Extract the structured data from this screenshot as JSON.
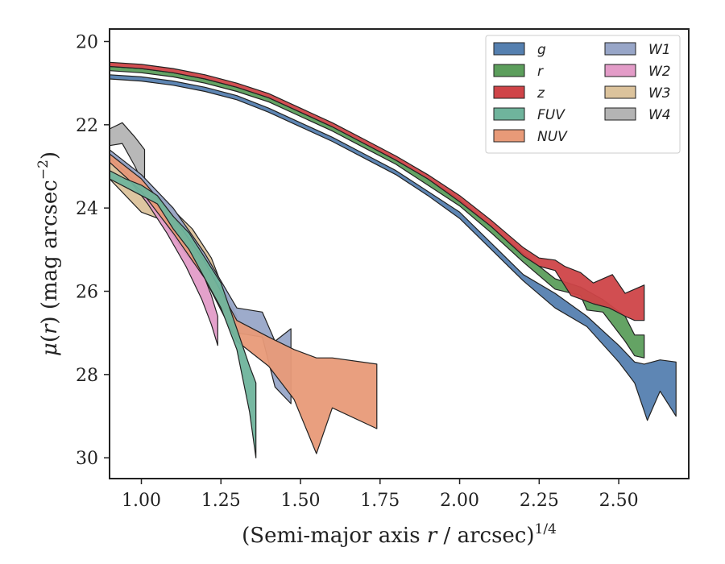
{
  "chart_data": {
    "type": "area",
    "xlabel": "(Semi-major axis r / arcsec)^1/4",
    "xlabel_parts": {
      "pre": "(Semi-major axis ",
      "var": "r",
      "mid": " / arcsec)",
      "sup": "1/4"
    },
    "ylabel": "μ(r) (mag arcsec^−2)",
    "ylabel_parts": {
      "var": "μ",
      "open": "(",
      "r": "r",
      "close": ")",
      "rest": " (mag arcsec",
      "sup": "−2",
      "end": ")"
    },
    "xlim": [
      0.9,
      2.72
    ],
    "ylim": [
      30.5,
      19.7
    ],
    "y_inverted": true,
    "xticks": [
      "1.00",
      "1.25",
      "1.50",
      "1.75",
      "2.00",
      "2.25",
      "2.50"
    ],
    "yticks": [
      "20",
      "22",
      "24",
      "26",
      "28",
      "30"
    ],
    "legend_position": "top-right",
    "legend_columns": 2,
    "series": [
      {
        "name": "W3",
        "color": "#dcc39c",
        "upper": [
          [
            0.9,
            22.9
          ],
          [
            1.0,
            23.5
          ],
          [
            1.07,
            23.8
          ],
          [
            1.12,
            24.2
          ],
          [
            1.16,
            24.5
          ],
          [
            1.22,
            25.2
          ],
          [
            1.26,
            26.0
          ],
          [
            1.3,
            26.6
          ]
        ],
        "lower": [
          [
            0.9,
            23.3
          ],
          [
            1.0,
            24.1
          ],
          [
            1.07,
            24.3
          ],
          [
            1.12,
            24.9
          ],
          [
            1.16,
            25.3
          ],
          [
            1.22,
            25.7
          ],
          [
            1.26,
            26.3
          ],
          [
            1.3,
            26.8
          ]
        ]
      },
      {
        "name": "W4",
        "color": "#b4b4b4",
        "upper": [
          [
            0.9,
            22.1
          ],
          [
            0.94,
            21.95
          ],
          [
            0.98,
            22.3
          ],
          [
            1.01,
            22.6
          ]
        ],
        "lower": [
          [
            0.9,
            22.5
          ],
          [
            0.94,
            22.45
          ],
          [
            0.98,
            23.0
          ],
          [
            1.01,
            23.5
          ]
        ]
      },
      {
        "name": "W2",
        "color": "#e39cc8",
        "upper": [
          [
            0.9,
            22.7
          ],
          [
            0.96,
            23.0
          ],
          [
            1.02,
            23.5
          ],
          [
            1.08,
            24.1
          ],
          [
            1.14,
            24.8
          ],
          [
            1.19,
            25.5
          ],
          [
            1.22,
            26.1
          ],
          [
            1.24,
            26.6
          ]
        ],
        "lower": [
          [
            0.9,
            22.9
          ],
          [
            0.96,
            23.3
          ],
          [
            1.02,
            23.9
          ],
          [
            1.08,
            24.6
          ],
          [
            1.14,
            25.4
          ],
          [
            1.19,
            26.2
          ],
          [
            1.22,
            26.8
          ],
          [
            1.24,
            27.3
          ]
        ]
      },
      {
        "name": "W1",
        "color": "#98a6c8",
        "upper": [
          [
            0.9,
            22.6
          ],
          [
            1.0,
            23.2
          ],
          [
            1.1,
            24.0
          ],
          [
            1.2,
            25.1
          ],
          [
            1.3,
            26.4
          ],
          [
            1.38,
            26.5
          ],
          [
            1.42,
            27.2
          ],
          [
            1.47,
            26.9
          ]
        ],
        "lower": [
          [
            0.9,
            22.8
          ],
          [
            1.0,
            23.5
          ],
          [
            1.1,
            24.4
          ],
          [
            1.2,
            25.6
          ],
          [
            1.3,
            27.0
          ],
          [
            1.38,
            27.1
          ],
          [
            1.42,
            28.3
          ],
          [
            1.47,
            28.7
          ]
        ]
      },
      {
        "name": "NUV",
        "color": "#e89a78",
        "upper": [
          [
            0.9,
            22.7
          ],
          [
            1.0,
            23.3
          ],
          [
            1.1,
            24.2
          ],
          [
            1.2,
            25.3
          ],
          [
            1.3,
            26.7
          ],
          [
            1.4,
            27.1
          ],
          [
            1.48,
            27.4
          ],
          [
            1.55,
            27.6
          ],
          [
            1.6,
            27.6
          ],
          [
            1.74,
            27.75
          ]
        ],
        "lower": [
          [
            0.9,
            22.9
          ],
          [
            1.0,
            23.6
          ],
          [
            1.1,
            24.6
          ],
          [
            1.2,
            25.7
          ],
          [
            1.3,
            27.2
          ],
          [
            1.4,
            27.8
          ],
          [
            1.48,
            28.6
          ],
          [
            1.55,
            29.9
          ],
          [
            1.6,
            28.8
          ],
          [
            1.74,
            29.3
          ]
        ]
      },
      {
        "name": "FUV",
        "color": "#6fb49c",
        "upper": [
          [
            0.9,
            23.1
          ],
          [
            0.95,
            23.3
          ],
          [
            1.0,
            23.45
          ],
          [
            1.05,
            23.7
          ],
          [
            1.1,
            24.2
          ],
          [
            1.15,
            24.6
          ],
          [
            1.2,
            25.2
          ],
          [
            1.25,
            25.8
          ],
          [
            1.3,
            26.9
          ],
          [
            1.34,
            27.8
          ],
          [
            1.36,
            28.2
          ]
        ],
        "lower": [
          [
            0.9,
            23.3
          ],
          [
            0.95,
            23.5
          ],
          [
            1.0,
            23.7
          ],
          [
            1.05,
            23.9
          ],
          [
            1.1,
            24.5
          ],
          [
            1.15,
            25.0
          ],
          [
            1.2,
            25.7
          ],
          [
            1.25,
            26.4
          ],
          [
            1.3,
            27.4
          ],
          [
            1.34,
            28.9
          ],
          [
            1.36,
            30.0
          ]
        ]
      },
      {
        "name": "g",
        "color": "#5580b0",
        "upper": [
          [
            0.9,
            20.8
          ],
          [
            1.0,
            20.85
          ],
          [
            1.1,
            20.95
          ],
          [
            1.2,
            21.1
          ],
          [
            1.3,
            21.3
          ],
          [
            1.4,
            21.6
          ],
          [
            1.5,
            21.95
          ],
          [
            1.6,
            22.3
          ],
          [
            1.7,
            22.7
          ],
          [
            1.8,
            23.1
          ],
          [
            1.9,
            23.6
          ],
          [
            2.0,
            24.1
          ],
          [
            2.1,
            24.85
          ],
          [
            2.2,
            25.6
          ],
          [
            2.3,
            26.05
          ],
          [
            2.4,
            26.6
          ],
          [
            2.5,
            27.3
          ],
          [
            2.55,
            27.7
          ],
          [
            2.58,
            27.75
          ],
          [
            2.63,
            27.65
          ],
          [
            2.68,
            27.7
          ]
        ],
        "lower": [
          [
            0.9,
            20.9
          ],
          [
            1.0,
            20.95
          ],
          [
            1.1,
            21.05
          ],
          [
            1.2,
            21.2
          ],
          [
            1.3,
            21.4
          ],
          [
            1.4,
            21.7
          ],
          [
            1.5,
            22.05
          ],
          [
            1.6,
            22.4
          ],
          [
            1.7,
            22.8
          ],
          [
            1.8,
            23.2
          ],
          [
            1.9,
            23.7
          ],
          [
            2.0,
            24.25
          ],
          [
            2.1,
            25.0
          ],
          [
            2.2,
            25.75
          ],
          [
            2.3,
            26.4
          ],
          [
            2.4,
            26.85
          ],
          [
            2.5,
            27.7
          ],
          [
            2.55,
            28.2
          ],
          [
            2.59,
            29.1
          ],
          [
            2.63,
            28.4
          ],
          [
            2.68,
            29.0
          ]
        ]
      },
      {
        "name": "r",
        "color": "#5c9e5c",
        "upper": [
          [
            0.9,
            20.6
          ],
          [
            1.0,
            20.65
          ],
          [
            1.1,
            20.75
          ],
          [
            1.2,
            20.9
          ],
          [
            1.3,
            21.1
          ],
          [
            1.4,
            21.35
          ],
          [
            1.5,
            21.7
          ],
          [
            1.6,
            22.05
          ],
          [
            1.7,
            22.45
          ],
          [
            1.8,
            22.85
          ],
          [
            1.9,
            23.3
          ],
          [
            2.0,
            23.8
          ],
          [
            2.1,
            24.45
          ],
          [
            2.2,
            25.1
          ],
          [
            2.3,
            25.7
          ],
          [
            2.38,
            25.9
          ],
          [
            2.45,
            26.2
          ],
          [
            2.52,
            26.6
          ],
          [
            2.55,
            27.05
          ],
          [
            2.58,
            27.05
          ]
        ],
        "lower": [
          [
            0.9,
            20.7
          ],
          [
            1.0,
            20.75
          ],
          [
            1.1,
            20.85
          ],
          [
            1.2,
            21.0
          ],
          [
            1.3,
            21.2
          ],
          [
            1.4,
            21.45
          ],
          [
            1.5,
            21.8
          ],
          [
            1.6,
            22.15
          ],
          [
            1.7,
            22.55
          ],
          [
            1.8,
            22.95
          ],
          [
            1.9,
            23.45
          ],
          [
            2.0,
            23.95
          ],
          [
            2.1,
            24.6
          ],
          [
            2.2,
            25.3
          ],
          [
            2.3,
            25.95
          ],
          [
            2.38,
            26.1
          ],
          [
            2.4,
            26.45
          ],
          [
            2.45,
            26.5
          ],
          [
            2.52,
            27.2
          ],
          [
            2.55,
            27.55
          ],
          [
            2.58,
            27.6
          ]
        ]
      },
      {
        "name": "z",
        "color": "#cf4448",
        "upper": [
          [
            0.9,
            20.5
          ],
          [
            1.0,
            20.55
          ],
          [
            1.1,
            20.65
          ],
          [
            1.2,
            20.8
          ],
          [
            1.3,
            21.0
          ],
          [
            1.4,
            21.25
          ],
          [
            1.5,
            21.6
          ],
          [
            1.6,
            21.95
          ],
          [
            1.7,
            22.35
          ],
          [
            1.8,
            22.75
          ],
          [
            1.9,
            23.2
          ],
          [
            2.0,
            23.7
          ],
          [
            2.1,
            24.3
          ],
          [
            2.2,
            24.95
          ],
          [
            2.25,
            25.2
          ],
          [
            2.3,
            25.25
          ],
          [
            2.33,
            25.4
          ],
          [
            2.38,
            25.55
          ],
          [
            2.42,
            25.8
          ],
          [
            2.48,
            25.6
          ],
          [
            2.52,
            26.05
          ],
          [
            2.58,
            25.85
          ]
        ],
        "lower": [
          [
            0.9,
            20.6
          ],
          [
            1.0,
            20.65
          ],
          [
            1.1,
            20.75
          ],
          [
            1.2,
            20.9
          ],
          [
            1.3,
            21.1
          ],
          [
            1.4,
            21.35
          ],
          [
            1.5,
            21.7
          ],
          [
            1.6,
            22.05
          ],
          [
            1.7,
            22.45
          ],
          [
            1.8,
            22.85
          ],
          [
            1.9,
            23.3
          ],
          [
            2.0,
            23.85
          ],
          [
            2.1,
            24.45
          ],
          [
            2.2,
            25.15
          ],
          [
            2.25,
            25.4
          ],
          [
            2.3,
            25.5
          ],
          [
            2.35,
            26.1
          ],
          [
            2.42,
            26.3
          ],
          [
            2.47,
            26.4
          ],
          [
            2.52,
            26.6
          ],
          [
            2.55,
            26.7
          ],
          [
            2.58,
            26.7
          ]
        ]
      }
    ],
    "legend": [
      {
        "name": "g",
        "color": "#5580b0"
      },
      {
        "name": "r",
        "color": "#5c9e5c"
      },
      {
        "name": "z",
        "color": "#cf4448"
      },
      {
        "name": "FUV",
        "color": "#6fb49c"
      },
      {
        "name": "NUV",
        "color": "#e89a78"
      },
      {
        "name": "W1",
        "color": "#98a6c8"
      },
      {
        "name": "W2",
        "color": "#e39cc8"
      },
      {
        "name": "W3",
        "color": "#dcc39c"
      },
      {
        "name": "W4",
        "color": "#b4b4b4"
      }
    ]
  }
}
